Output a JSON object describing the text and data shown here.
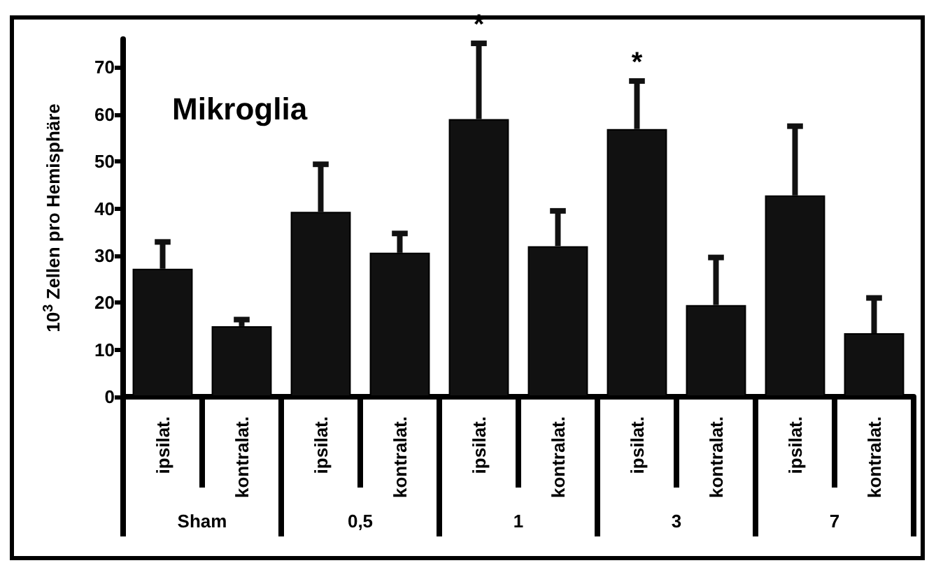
{
  "chart_data": {
    "type": "bar",
    "title": "Mikroglia",
    "ylabel": "10$^{3}$ Zellen pro Hemisphäre",
    "categories": [
      "ipsilat.",
      "kontralat.",
      "ipsilat.",
      "kontralat.",
      "ipsilat.",
      "kontralat.",
      "ipsilat.",
      "kontralat.",
      "ipsilat.",
      "kontralat."
    ],
    "values": [
      27.2,
      15.0,
      39.3,
      30.6,
      59.0,
      32.0,
      56.9,
      19.5,
      42.8,
      13.5
    ],
    "errors": [
      [
        27.2,
        32.9
      ],
      [
        15.0,
        16.4
      ],
      [
        39.3,
        49.4
      ],
      [
        30.6,
        34.7
      ],
      [
        59.0,
        75.1
      ],
      [
        32.0,
        39.5
      ],
      [
        56.9,
        67.1
      ],
      [
        19.5,
        29.6
      ],
      [
        42.8,
        57.5
      ],
      [
        13.5,
        21.0
      ]
    ],
    "value_labels": [
      null,
      null,
      null,
      null,
      "*",
      null,
      "*",
      null,
      null,
      null
    ],
    "annotations": [
      "Sham",
      "0,5",
      "1",
      "3",
      "7"
    ],
    "color": "#111111",
    "ylim": [
      0,
      76
    ],
    "yticks": [
      0,
      10,
      20,
      30,
      40,
      50,
      60,
      70
    ],
    "grid": false
  }
}
